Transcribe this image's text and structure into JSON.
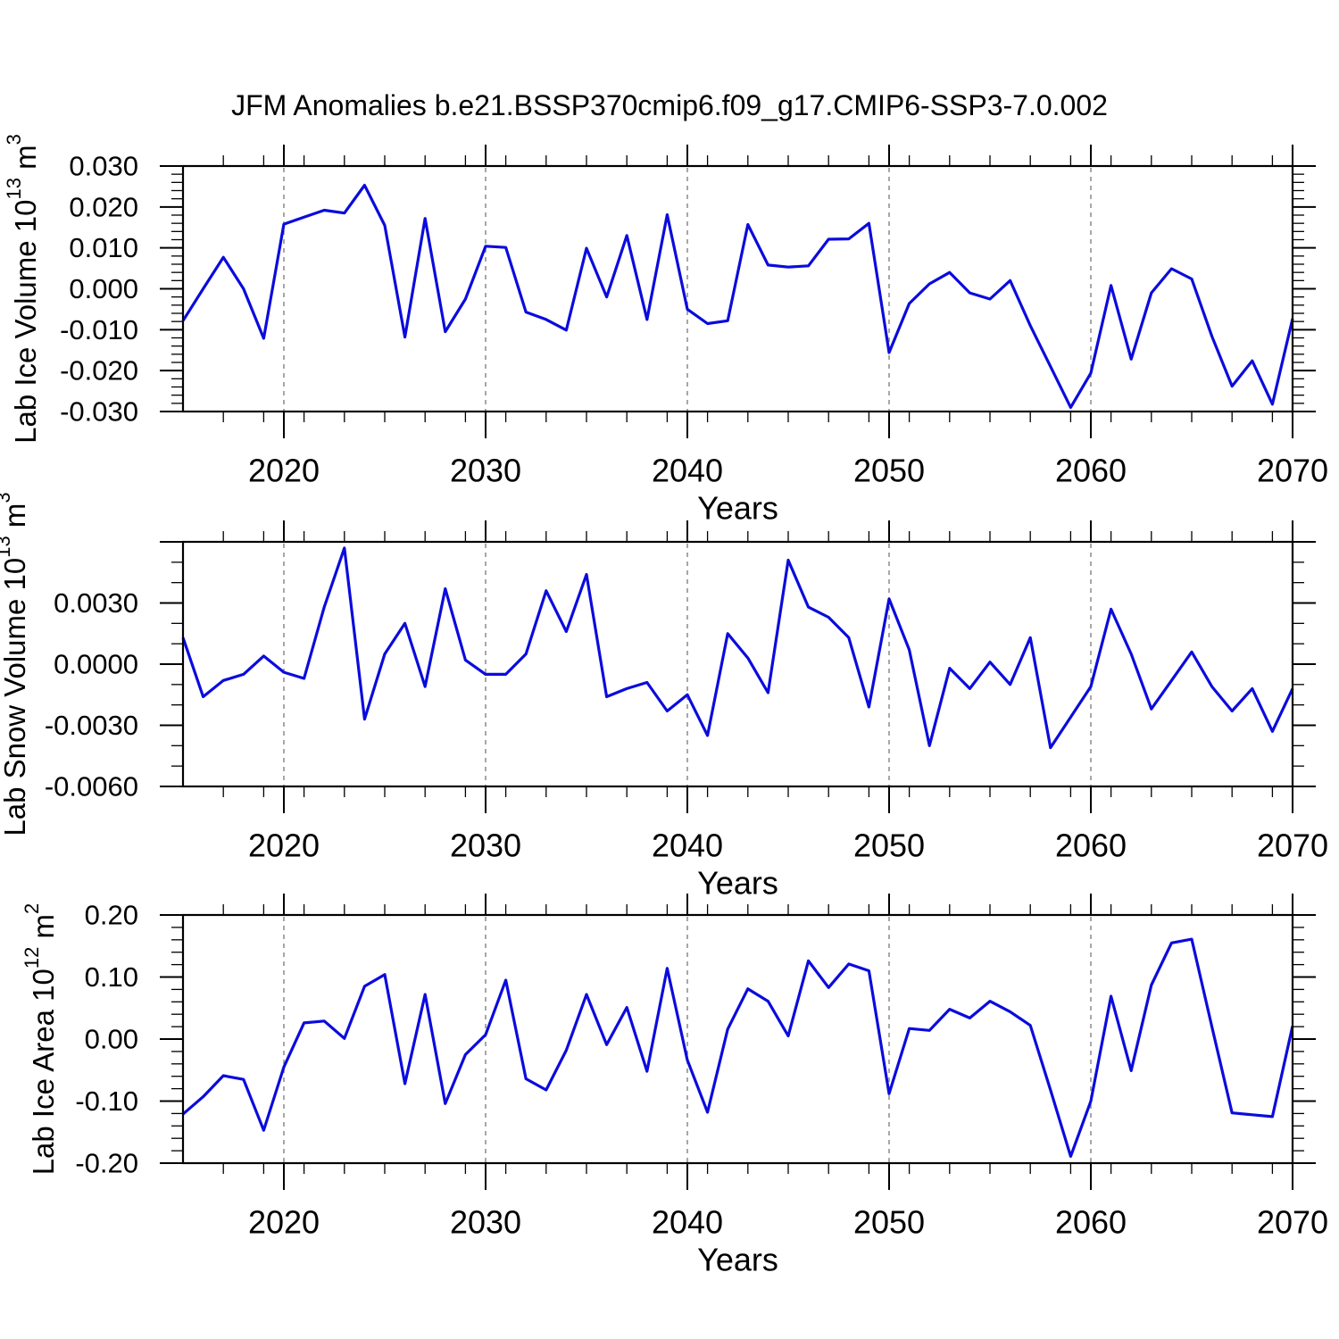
{
  "title": "JFM Anomalies b.e21.BSSP370cmip6.f09_g17.CMIP6-SSP3-7.0.002",
  "colors": {
    "line": "#0b0bdd",
    "frame": "#000000",
    "grid": "#8a8a8a",
    "text": "#000000",
    "background": "#ffffff"
  },
  "chart_data": [
    {
      "type": "line",
      "panel": "lab-ice-volume",
      "ylabel": "Lab Ice Volume 10^13 m^3",
      "ylabel_segments": [
        {
          "text": "Lab Ice Volume 10"
        },
        {
          "text": "13",
          "sup": true
        },
        {
          "text": " m"
        },
        {
          "text": "3",
          "sup": true
        }
      ],
      "xlabel": "Years",
      "xlim": [
        2015,
        2070
      ],
      "ylim": [
        -0.03,
        0.03
      ],
      "xticks": [
        2020,
        2030,
        2040,
        2050,
        2060,
        2070
      ],
      "xtick_labels": [
        "2020",
        "2030",
        "2040",
        "2050",
        "2060",
        "2070"
      ],
      "xtick_minor_step": 2,
      "grid_years": [
        2020,
        2030,
        2040,
        2050,
        2060
      ],
      "yticks": [
        0.03,
        0.02,
        0.01,
        0.0,
        -0.01,
        -0.02,
        -0.03
      ],
      "ytick_labels": [
        "0.030",
        "0.020",
        "0.010",
        "0.000",
        "-0.010",
        "-0.020",
        "-0.030"
      ],
      "ytick_minor_step": 0.002,
      "x": [
        2015,
        2016,
        2017,
        2018,
        2019,
        2020,
        2021,
        2022,
        2023,
        2024,
        2025,
        2026,
        2027,
        2028,
        2029,
        2030,
        2031,
        2032,
        2033,
        2034,
        2035,
        2036,
        2037,
        2038,
        2039,
        2040,
        2041,
        2042,
        2043,
        2044,
        2045,
        2046,
        2047,
        2048,
        2049,
        2050,
        2051,
        2052,
        2053,
        2054,
        2055,
        2056,
        2057,
        2058,
        2059,
        2060,
        2061,
        2062,
        2063,
        2064,
        2065,
        2066,
        2067,
        2068,
        2069,
        2070
      ],
      "values": [
        -0.0078,
        0.0,
        0.0077,
        0.0,
        -0.0121,
        0.0158,
        0.0175,
        0.0192,
        0.0185,
        0.0253,
        0.0155,
        -0.0118,
        0.0172,
        -0.0105,
        -0.0025,
        0.0104,
        0.0101,
        -0.0057,
        -0.0075,
        -0.0101,
        0.0099,
        -0.002,
        0.013,
        -0.0075,
        0.0181,
        -0.005,
        -0.0085,
        -0.0078,
        0.0157,
        0.0058,
        0.0053,
        0.0056,
        0.0121,
        0.0122,
        0.016,
        -0.0156,
        -0.0036,
        0.0012,
        0.004,
        -0.001,
        -0.0025,
        0.002,
        -0.009,
        -0.019,
        -0.029,
        -0.0206,
        0.0008,
        -0.0172,
        -0.001,
        0.0049,
        0.0024,
        -0.0116,
        -0.0238,
        -0.0176,
        -0.0282,
        -0.0073
      ]
    },
    {
      "type": "line",
      "panel": "lab-snow-volume",
      "ylabel": "Lab Snow Volume 10^13 m^3",
      "ylabel_segments": [
        {
          "text": "Lab Snow Volume 10"
        },
        {
          "text": "13",
          "sup": true
        },
        {
          "text": " m"
        },
        {
          "text": "3",
          "sup": true
        }
      ],
      "xlabel": "Years",
      "xlim": [
        2015,
        2070
      ],
      "ylim": [
        -0.006,
        0.006
      ],
      "xticks": [
        2020,
        2030,
        2040,
        2050,
        2060,
        2070
      ],
      "xtick_labels": [
        "2020",
        "2030",
        "2040",
        "2050",
        "2060",
        "2070"
      ],
      "xtick_minor_step": 2,
      "grid_years": [
        2020,
        2030,
        2040,
        2050,
        2060
      ],
      "yticks": [
        0.006,
        0.003,
        0.0,
        -0.003,
        -0.006
      ],
      "ytick_labels": [
        "",
        "0.0030",
        "0.0000",
        "-0.0030",
        "-0.0060"
      ],
      "ytick_minor_step": 0.001,
      "x": [
        2015,
        2016,
        2017,
        2018,
        2019,
        2020,
        2021,
        2022,
        2023,
        2024,
        2025,
        2026,
        2027,
        2028,
        2029,
        2030,
        2031,
        2032,
        2033,
        2034,
        2035,
        2036,
        2037,
        2038,
        2039,
        2040,
        2041,
        2042,
        2043,
        2044,
        2045,
        2046,
        2047,
        2048,
        2049,
        2050,
        2051,
        2052,
        2053,
        2054,
        2055,
        2056,
        2057,
        2058,
        2059,
        2060,
        2061,
        2062,
        2063,
        2064,
        2065,
        2066,
        2067,
        2068,
        2069,
        2070
      ],
      "values": [
        0.0013,
        -0.0016,
        -0.0008,
        -0.0005,
        0.0004,
        -0.0004,
        -0.0007,
        0.0028,
        0.0057,
        -0.0027,
        0.0005,
        0.002,
        -0.0011,
        0.0037,
        0.0002,
        -0.0005,
        -0.0005,
        0.0005,
        0.0036,
        0.0016,
        0.0044,
        -0.0016,
        -0.0012,
        -0.0009,
        -0.0023,
        -0.0015,
        -0.0035,
        0.0015,
        0.0003,
        -0.0014,
        0.0051,
        0.0028,
        0.0023,
        0.0013,
        -0.0021,
        0.0032,
        0.0007,
        -0.004,
        -0.0002,
        -0.0012,
        0.0001,
        -0.001,
        0.0013,
        -0.0041,
        -0.0026,
        -0.0011,
        0.0027,
        0.0005,
        -0.0022,
        -0.0008,
        0.0006,
        -0.0011,
        -0.0023,
        -0.0012,
        -0.0033,
        -0.0012
      ]
    },
    {
      "type": "line",
      "panel": "lab-ice-area",
      "ylabel": "Lab Ice Area 10^12 m^2",
      "ylabel_segments": [
        {
          "text": "Lab Ice Area 10"
        },
        {
          "text": "12",
          "sup": true
        },
        {
          "text": " m"
        },
        {
          "text": "2",
          "sup": true
        }
      ],
      "xlabel": "Years",
      "xlim": [
        2015,
        2070
      ],
      "ylim": [
        -0.2,
        0.2
      ],
      "xticks": [
        2020,
        2030,
        2040,
        2050,
        2060,
        2070
      ],
      "xtick_labels": [
        "2020",
        "2030",
        "2040",
        "2050",
        "2060",
        "2070"
      ],
      "xtick_minor_step": 2,
      "grid_years": [
        2020,
        2030,
        2040,
        2050,
        2060
      ],
      "yticks": [
        0.2,
        0.1,
        0.0,
        -0.1,
        -0.2
      ],
      "ytick_labels": [
        "0.20",
        "0.10",
        "0.00",
        "-0.10",
        "-0.20"
      ],
      "ytick_minor_step": 0.02,
      "x": [
        2015,
        2016,
        2017,
        2018,
        2019,
        2020,
        2021,
        2022,
        2023,
        2024,
        2025,
        2026,
        2027,
        2028,
        2029,
        2030,
        2031,
        2032,
        2033,
        2034,
        2035,
        2036,
        2037,
        2038,
        2039,
        2040,
        2041,
        2042,
        2043,
        2044,
        2045,
        2046,
        2047,
        2048,
        2049,
        2050,
        2051,
        2052,
        2053,
        2054,
        2055,
        2056,
        2057,
        2058,
        2059,
        2060,
        2061,
        2062,
        2063,
        2064,
        2065,
        2066,
        2067,
        2068,
        2069,
        2070
      ],
      "values": [
        -0.121,
        -0.093,
        -0.059,
        -0.065,
        -0.147,
        -0.045,
        0.026,
        0.029,
        0.001,
        0.085,
        0.104,
        -0.072,
        0.072,
        -0.104,
        -0.025,
        0.007,
        0.095,
        -0.064,
        -0.082,
        -0.018,
        0.072,
        -0.009,
        0.051,
        -0.052,
        0.114,
        -0.034,
        -0.118,
        0.016,
        0.081,
        0.061,
        0.005,
        0.126,
        0.083,
        0.121,
        0.11,
        -0.088,
        0.017,
        0.014,
        0.048,
        0.034,
        0.061,
        0.044,
        0.022,
        -0.082,
        -0.189,
        -0.1,
        0.069,
        -0.051,
        0.087,
        0.155,
        0.161,
        0.02,
        -0.119,
        -0.122,
        -0.125,
        0.021
      ]
    }
  ]
}
